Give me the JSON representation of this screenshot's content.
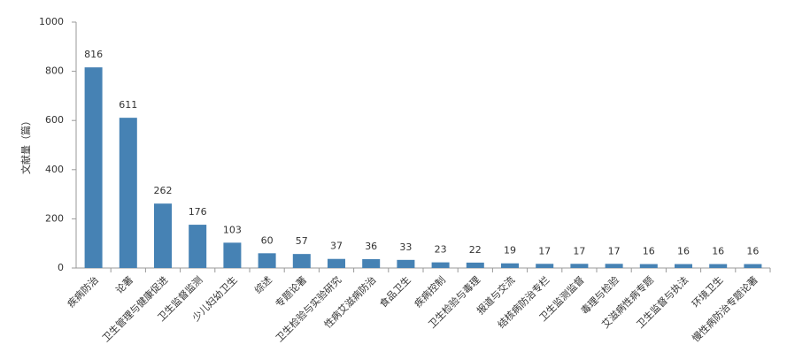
{
  "chart_data": {
    "type": "bar",
    "y_label": "文献量（篇）",
    "categories": [
      "疾病防治",
      "论著",
      "卫生管理与健康促进",
      "卫生监督监测",
      "少儿妇幼卫生",
      "综述",
      "专题论著",
      "卫生检验与实验研究",
      "性病艾滋病防治",
      "食品卫生",
      "疾病控制",
      "卫生检验与毒理",
      "报道与交流",
      "结核病防治专栏",
      "卫生监测监督",
      "毒理与检验",
      "艾滋病性病专题",
      "卫生监督与执法",
      "环境卫生",
      "慢性病防治专题论著"
    ],
    "values": [
      816,
      611,
      262,
      176,
      103,
      60,
      57,
      37,
      36,
      33,
      23,
      22,
      19,
      17,
      17,
      17,
      16,
      16,
      16,
      16
    ],
    "color": "#4682b4",
    "ylim": [
      0,
      1000
    ],
    "yticks": [
      0,
      200,
      400,
      600,
      800,
      1000
    ],
    "grid": false
  }
}
